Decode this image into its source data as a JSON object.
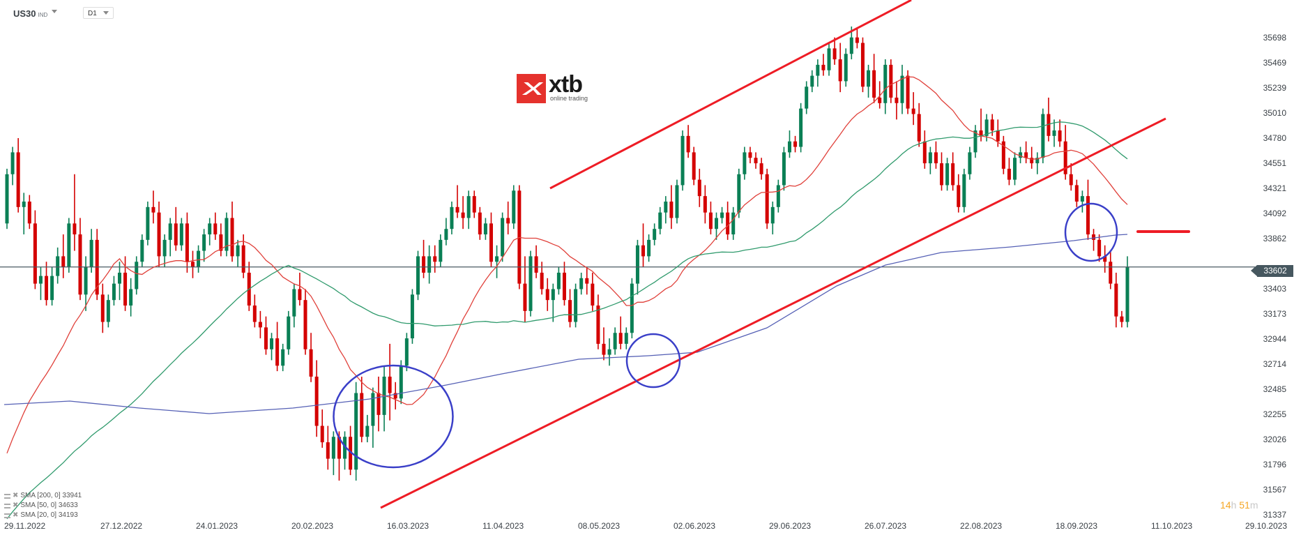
{
  "header": {
    "symbol": "US30",
    "symbol_type": "IND",
    "timeframe": "D1"
  },
  "logo": {
    "name": "xtb",
    "tagline": "online trading"
  },
  "current_price": "33602",
  "timer": {
    "hours": "14",
    "h": "h",
    "minutes": "51",
    "m": "m"
  },
  "legend": [
    {
      "label": "SMA [200, 0] 33941"
    },
    {
      "label": "SMA [50, 0] 34633"
    },
    {
      "label": "SMA [20, 0] 34193"
    }
  ],
  "colors": {
    "bull": "#0a7f55",
    "bear": "#d40000",
    "sma20": "#e0403a",
    "sma50": "#2f9a6c",
    "sma200": "#5560b5",
    "trendline": "#ee1c25",
    "circle": "#3a3fc8",
    "price_line": "#4a5a62"
  },
  "chart_data": {
    "type": "candlestick",
    "title": "US30 IND D1",
    "xlabel": "",
    "ylabel": "",
    "ylim": [
      31337,
      35698
    ],
    "y_ticks": [
      35698,
      35469,
      35239,
      35010,
      34780,
      34551,
      34321,
      34092,
      33862,
      33602,
      33403,
      33173,
      32944,
      32714,
      32485,
      32255,
      32026,
      31796,
      31567,
      31337
    ],
    "x_ticks": [
      "29.11.2022",
      "27.12.2022",
      "24.01.2023",
      "20.02.2023",
      "16.03.2023",
      "11.04.2023",
      "08.05.2023",
      "02.06.2023",
      "29.06.2023",
      "26.07.2023",
      "22.08.2023",
      "18.09.2023",
      "11.10.2023",
      "29.10.2023"
    ],
    "current_price": 33602,
    "indicators": [
      {
        "name": "SMA 200",
        "last": 33941
      },
      {
        "name": "SMA 50",
        "last": 34633
      },
      {
        "name": "SMA 20",
        "last": 34193
      }
    ],
    "candles_ohlc": [
      [
        34000,
        34500,
        33950,
        34450
      ],
      [
        34450,
        34700,
        34350,
        34650
      ],
      [
        34650,
        34780,
        34100,
        34150
      ],
      [
        34150,
        34280,
        33900,
        34200
      ],
      [
        34200,
        34260,
        33950,
        34000
      ],
      [
        34000,
        34120,
        33400,
        33450
      ],
      [
        33450,
        33600,
        33300,
        33520
      ],
      [
        33520,
        33650,
        33250,
        33300
      ],
      [
        33300,
        33600,
        33250,
        33520
      ],
      [
        33520,
        33780,
        33450,
        33700
      ],
      [
        33700,
        33900,
        33500,
        33600
      ],
      [
        33600,
        34050,
        33550,
        34000
      ],
      [
        34000,
        34450,
        33750,
        33900
      ],
      [
        33900,
        34050,
        33300,
        33350
      ],
      [
        33350,
        33700,
        33200,
        33600
      ],
      [
        33600,
        33950,
        33550,
        33850
      ],
      [
        33850,
        33950,
        33300,
        33350
      ],
      [
        33350,
        33450,
        33000,
        33100
      ],
      [
        33100,
        33350,
        33050,
        33300
      ],
      [
        33300,
        33520,
        33250,
        33450
      ],
      [
        33450,
        33650,
        33300,
        33550
      ],
      [
        33550,
        33700,
        33200,
        33250
      ],
      [
        33250,
        33500,
        33150,
        33400
      ],
      [
        33400,
        33700,
        33350,
        33650
      ],
      [
        33650,
        33900,
        33600,
        33850
      ],
      [
        33850,
        34200,
        33800,
        34150
      ],
      [
        34150,
        34300,
        34000,
        34100
      ],
      [
        34100,
        34200,
        33600,
        33700
      ],
      [
        33700,
        33900,
        33600,
        33850
      ],
      [
        33850,
        34050,
        33700,
        34000
      ],
      [
        34000,
        34150,
        33750,
        33800
      ],
      [
        33800,
        34050,
        33750,
        34000
      ],
      [
        34000,
        34100,
        33550,
        33650
      ],
      [
        33650,
        33750,
        33500,
        33600
      ],
      [
        33600,
        33800,
        33550,
        33750
      ],
      [
        33750,
        33950,
        33650,
        33900
      ],
      [
        33900,
        34050,
        33800,
        34000
      ],
      [
        34000,
        34100,
        33850,
        33900
      ],
      [
        33900,
        34000,
        33700,
        33750
      ],
      [
        33750,
        34100,
        33700,
        34050
      ],
      [
        34050,
        34200,
        33650,
        33700
      ],
      [
        33700,
        33850,
        33600,
        33800
      ],
      [
        33800,
        33900,
        33500,
        33550
      ],
      [
        33550,
        33650,
        33200,
        33250
      ],
      [
        33250,
        33350,
        33050,
        33100
      ],
      [
        33100,
        33200,
        32950,
        33050
      ],
      [
        33050,
        33150,
        32800,
        32850
      ],
      [
        32850,
        33000,
        32750,
        32950
      ],
      [
        32950,
        33100,
        32650,
        32700
      ],
      [
        32700,
        32900,
        32650,
        32850
      ],
      [
        32850,
        33200,
        32800,
        33150
      ],
      [
        33150,
        33450,
        33050,
        33400
      ],
      [
        33400,
        33550,
        33250,
        33300
      ],
      [
        33300,
        33400,
        32800,
        32850
      ],
      [
        32850,
        33000,
        32550,
        32600
      ],
      [
        32600,
        32750,
        32050,
        32150
      ],
      [
        32150,
        32300,
        31950,
        32000
      ],
      [
        32000,
        32150,
        31750,
        31850
      ],
      [
        31850,
        32100,
        31700,
        32050
      ],
      [
        32050,
        32100,
        31650,
        31850
      ],
      [
        31850,
        32100,
        31750,
        32050
      ],
      [
        32050,
        32150,
        31700,
        31750
      ],
      [
        31750,
        32550,
        31650,
        32450
      ],
      [
        32450,
        32600,
        32000,
        32050
      ],
      [
        32050,
        32250,
        32000,
        32150
      ],
      [
        32150,
        32500,
        31950,
        32450
      ],
      [
        32450,
        32600,
        32100,
        32250
      ],
      [
        32250,
        32700,
        32100,
        32600
      ],
      [
        32600,
        32900,
        32200,
        32450
      ],
      [
        32450,
        32550,
        32300,
        32400
      ],
      [
        32400,
        32750,
        32350,
        32700
      ],
      [
        32700,
        33000,
        32650,
        32950
      ],
      [
        32950,
        33400,
        32900,
        33350
      ],
      [
        33350,
        33750,
        33300,
        33700
      ],
      [
        33700,
        33850,
        33500,
        33550
      ],
      [
        33550,
        33800,
        33450,
        33700
      ],
      [
        33700,
        33800,
        33550,
        33650
      ],
      [
        33650,
        33900,
        33600,
        33850
      ],
      [
        33850,
        34050,
        33800,
        33950
      ],
      [
        33950,
        34200,
        33900,
        34150
      ],
      [
        34150,
        34350,
        34050,
        34100
      ],
      [
        34100,
        34250,
        33950,
        34050
      ],
      [
        34050,
        34300,
        33950,
        34250
      ],
      [
        34250,
        34300,
        34050,
        34100
      ],
      [
        34100,
        34150,
        33850,
        33900
      ],
      [
        33900,
        34050,
        33850,
        34000
      ],
      [
        34000,
        34100,
        33600,
        33650
      ],
      [
        33650,
        33800,
        33500,
        33700
      ],
      [
        33700,
        34100,
        33650,
        34050
      ],
      [
        34050,
        34200,
        33900,
        34000
      ],
      [
        34000,
        34350,
        33950,
        34300
      ],
      [
        34300,
        34350,
        33400,
        33450
      ],
      [
        33450,
        33700,
        33100,
        33200
      ],
      [
        33200,
        33750,
        33150,
        33700
      ],
      [
        33700,
        33800,
        33500,
        33550
      ],
      [
        33550,
        33650,
        33350,
        33400
      ],
      [
        33400,
        33500,
        33200,
        33300
      ],
      [
        33300,
        33450,
        33100,
        33400
      ],
      [
        33400,
        33600,
        33350,
        33550
      ],
      [
        33550,
        33650,
        33250,
        33300
      ],
      [
        33300,
        33400,
        33050,
        33100
      ],
      [
        33100,
        33450,
        33050,
        33400
      ],
      [
        33400,
        33550,
        33350,
        33500
      ],
      [
        33500,
        33600,
        33350,
        33450
      ],
      [
        33450,
        33550,
        33200,
        33250
      ],
      [
        33250,
        33350,
        32850,
        32900
      ],
      [
        32900,
        33050,
        32750,
        32800
      ],
      [
        32800,
        32950,
        32700,
        32850
      ],
      [
        32850,
        33050,
        32800,
        33000
      ],
      [
        33000,
        33150,
        32850,
        32900
      ],
      [
        32900,
        33050,
        32850,
        33000
      ],
      [
        33000,
        33500,
        32950,
        33450
      ],
      [
        33450,
        33850,
        33350,
        33800
      ],
      [
        33800,
        34000,
        33600,
        33700
      ],
      [
        33700,
        33900,
        33650,
        33850
      ],
      [
        33850,
        34000,
        33800,
        33950
      ],
      [
        33950,
        34150,
        33900,
        34100
      ],
      [
        34100,
        34250,
        34000,
        34200
      ],
      [
        34200,
        34350,
        33950,
        34050
      ],
      [
        34050,
        34400,
        34000,
        34350
      ],
      [
        34350,
        34850,
        34300,
        34800
      ],
      [
        34800,
        34900,
        34600,
        34650
      ],
      [
        34650,
        34700,
        34350,
        34400
      ],
      [
        34400,
        34500,
        34150,
        34250
      ],
      [
        34250,
        34350,
        34000,
        34100
      ],
      [
        34100,
        34200,
        33900,
        33950
      ],
      [
        33950,
        34100,
        33850,
        34050
      ],
      [
        34050,
        34150,
        34000,
        34100
      ],
      [
        34100,
        34200,
        33850,
        33900
      ],
      [
        33900,
        34150,
        33850,
        34100
      ],
      [
        34100,
        34500,
        34050,
        34450
      ],
      [
        34450,
        34700,
        34400,
        34650
      ],
      [
        34650,
        34700,
        34550,
        34600
      ],
      [
        34600,
        34650,
        34500,
        34550
      ],
      [
        34550,
        34600,
        34400,
        34450
      ],
      [
        34450,
        34500,
        33950,
        34000
      ],
      [
        34000,
        34200,
        33900,
        34150
      ],
      [
        34150,
        34400,
        34100,
        34350
      ],
      [
        34350,
        34700,
        34300,
        34650
      ],
      [
        34650,
        34850,
        34600,
        34750
      ],
      [
        34750,
        34800,
        34650,
        34700
      ],
      [
        34700,
        35100,
        34650,
        35050
      ],
      [
        35050,
        35300,
        35000,
        35250
      ],
      [
        35250,
        35400,
        35200,
        35350
      ],
      [
        35350,
        35500,
        35250,
        35450
      ],
      [
        35450,
        35550,
        35350,
        35400
      ],
      [
        35400,
        35650,
        35350,
        35600
      ],
      [
        35600,
        35700,
        35450,
        35500
      ],
      [
        35500,
        35650,
        35200,
        35300
      ],
      [
        35300,
        35600,
        35250,
        35550
      ],
      [
        35550,
        35800,
        35500,
        35700
      ],
      [
        35700,
        35780,
        35600,
        35650
      ],
      [
        35650,
        35700,
        35200,
        35250
      ],
      [
        35250,
        35450,
        35150,
        35400
      ],
      [
        35400,
        35550,
        35100,
        35150
      ],
      [
        35150,
        35300,
        35050,
        35100
      ],
      [
        35100,
        35500,
        35000,
        35450
      ],
      [
        35450,
        35500,
        35100,
        35150
      ],
      [
        35150,
        35300,
        34950,
        35100
      ],
      [
        35100,
        35450,
        35000,
        35350
      ],
      [
        35350,
        35400,
        35000,
        35050
      ],
      [
        35050,
        35200,
        34900,
        35000
      ],
      [
        35000,
        35100,
        34700,
        34750
      ],
      [
        34750,
        34850,
        34500,
        34550
      ],
      [
        34550,
        34700,
        34450,
        34650
      ],
      [
        34650,
        34750,
        34500,
        34550
      ],
      [
        34550,
        34650,
        34300,
        34350
      ],
      [
        34350,
        34600,
        34300,
        34550
      ],
      [
        34550,
        34650,
        34300,
        34350
      ],
      [
        34350,
        34450,
        34100,
        34150
      ],
      [
        34150,
        34500,
        34100,
        34450
      ],
      [
        34450,
        34700,
        34400,
        34650
      ],
      [
        34650,
        34900,
        34600,
        34850
      ],
      [
        34850,
        35050,
        34750,
        34800
      ],
      [
        34800,
        35000,
        34750,
        34950
      ],
      [
        34950,
        35000,
        34800,
        34850
      ],
      [
        34850,
        34950,
        34700,
        34750
      ],
      [
        34750,
        34800,
        34450,
        34500
      ],
      [
        34500,
        34600,
        34350,
        34400
      ],
      [
        34400,
        34650,
        34350,
        34600
      ],
      [
        34600,
        34700,
        34550,
        34650
      ],
      [
        34650,
        34750,
        34550,
        34600
      ],
      [
        34600,
        34700,
        34500,
        34550
      ],
      [
        34550,
        34650,
        34450,
        34600
      ],
      [
        34600,
        35050,
        34550,
        35000
      ],
      [
        35000,
        35150,
        34750,
        34800
      ],
      [
        34800,
        34950,
        34700,
        34850
      ],
      [
        34850,
        34950,
        34700,
        34750
      ],
      [
        34750,
        34900,
        34400,
        34450
      ],
      [
        34450,
        34550,
        34300,
        34350
      ],
      [
        34350,
        34400,
        34150,
        34200
      ],
      [
        34200,
        34300,
        34100,
        34250
      ],
      [
        34250,
        34400,
        33850,
        33900
      ],
      [
        33900,
        33950,
        33750,
        33850
      ],
      [
        33850,
        33900,
        33650,
        33700
      ],
      [
        33700,
        33800,
        33550,
        33650
      ],
      [
        33650,
        33750,
        33400,
        33450
      ],
      [
        33450,
        33550,
        33050,
        33150
      ],
      [
        33150,
        33200,
        33050,
        33100
      ],
      [
        33100,
        33700,
        33050,
        33600
      ]
    ],
    "annotations": [
      {
        "type": "trendline",
        "label": "channel-upper",
        "from": [
          "13.04.2023",
          34250
        ],
        "to": [
          "08.08.2023",
          35950
        ]
      },
      {
        "type": "trendline",
        "label": "channel-lower",
        "from": [
          "13.03.2023",
          31400
        ],
        "to": [
          "05.10.2023",
          34750
        ]
      },
      {
        "type": "hline",
        "label": "resistance-marker",
        "price": 33940
      },
      {
        "type": "ellipse",
        "label": "support-zone-march"
      },
      {
        "type": "ellipse",
        "label": "support-zone-may"
      },
      {
        "type": "ellipse",
        "label": "sma200-test-september"
      }
    ]
  }
}
